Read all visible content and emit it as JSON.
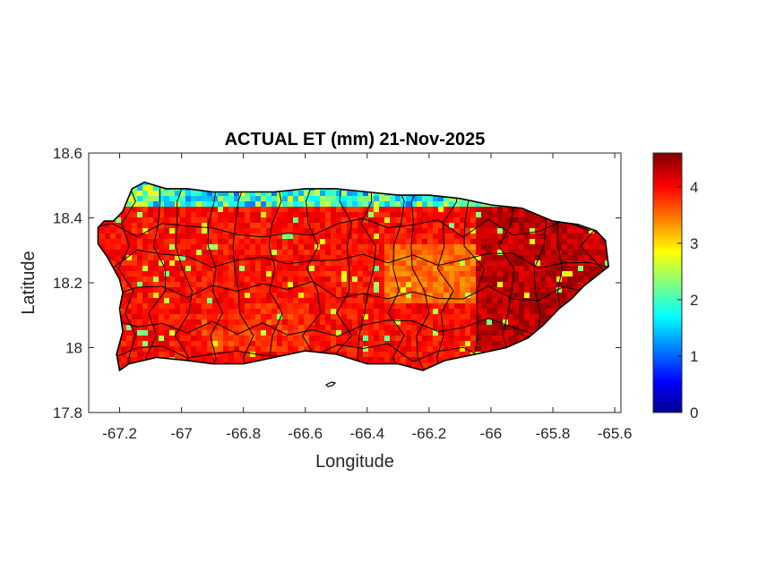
{
  "figure": {
    "title": "ACTUAL ET (mm) 21-Nov-2025",
    "xlabel": "Longitude",
    "ylabel": "Latitude"
  },
  "chart_data": {
    "type": "heatmap",
    "title": "ACTUAL ET (mm) 21-Nov-2025",
    "xlabel": "Longitude",
    "ylabel": "Latitude",
    "xlim": [
      -67.3,
      -65.58
    ],
    "ylim": [
      17.8,
      18.6
    ],
    "xticks": [
      -67.2,
      -67,
      -66.8,
      -66.6,
      -66.4,
      -66.2,
      -66,
      -65.8,
      -65.6
    ],
    "xtick_labels": [
      "-67.2",
      "-67",
      "-66.8",
      "-66.6",
      "-66.4",
      "-66.2",
      "-66",
      "-65.8",
      "-65.6"
    ],
    "yticks": [
      17.8,
      18,
      18.2,
      18.4,
      18.6
    ],
    "ytick_labels": [
      "17.8",
      "18",
      "18.2",
      "18.4",
      "18.6"
    ],
    "colorbar": {
      "colormap": "jet",
      "clim": [
        0,
        4.6
      ],
      "ticks": [
        0,
        1,
        2,
        3,
        4
      ],
      "tick_labels": [
        "0",
        "1",
        "2",
        "3",
        "4"
      ]
    },
    "grid": false,
    "field_description_summary": {
      "typical_range": [
        3.2,
        4.6
      ],
      "high_region": "eastern interior and southeast (~4.3-4.6)",
      "low_region": "north coast fringe (~0.5-2)",
      "moderate_region": "central-north interior (~3.0-3.5)"
    },
    "island_outline": [
      [
        -67.27,
        18.37
      ],
      [
        -67.25,
        18.39
      ],
      [
        -67.22,
        18.39
      ],
      [
        -67.19,
        18.42
      ],
      [
        -67.16,
        18.49
      ],
      [
        -67.12,
        18.51
      ],
      [
        -67.05,
        18.49
      ],
      [
        -66.98,
        18.49
      ],
      [
        -66.9,
        18.48
      ],
      [
        -66.8,
        18.48
      ],
      [
        -66.7,
        18.48
      ],
      [
        -66.6,
        18.49
      ],
      [
        -66.5,
        18.49
      ],
      [
        -66.4,
        18.48
      ],
      [
        -66.3,
        18.47
      ],
      [
        -66.2,
        18.47
      ],
      [
        -66.1,
        18.46
      ],
      [
        -66.0,
        18.44
      ],
      [
        -65.9,
        18.43
      ],
      [
        -65.8,
        18.39
      ],
      [
        -65.72,
        18.38
      ],
      [
        -65.66,
        18.36
      ],
      [
        -65.63,
        18.33
      ],
      [
        -65.62,
        18.25
      ],
      [
        -65.66,
        18.22
      ],
      [
        -65.7,
        18.19
      ],
      [
        -65.74,
        18.15
      ],
      [
        -65.78,
        18.12
      ],
      [
        -65.83,
        18.07
      ],
      [
        -65.88,
        18.03
      ],
      [
        -65.95,
        18.0
      ],
      [
        -66.05,
        17.98
      ],
      [
        -66.15,
        17.96
      ],
      [
        -66.22,
        17.93
      ],
      [
        -66.3,
        17.95
      ],
      [
        -66.4,
        17.95
      ],
      [
        -66.5,
        17.98
      ],
      [
        -66.6,
        17.99
      ],
      [
        -66.7,
        17.97
      ],
      [
        -66.8,
        17.95
      ],
      [
        -66.9,
        17.95
      ],
      [
        -66.98,
        17.96
      ],
      [
        -67.08,
        17.97
      ],
      [
        -67.17,
        17.95
      ],
      [
        -67.2,
        17.93
      ],
      [
        -67.21,
        17.98
      ],
      [
        -67.19,
        18.05
      ],
      [
        -67.2,
        18.12
      ],
      [
        -67.19,
        18.17
      ],
      [
        -67.2,
        18.21
      ],
      [
        -67.24,
        18.28
      ],
      [
        -67.27,
        18.32
      ]
    ]
  },
  "colors": {
    "jet_stops": [
      "#00008f",
      "#0000ff",
      "#00ffff",
      "#ffff00",
      "#ff0000",
      "#800000"
    ],
    "border": "#000000",
    "text": "#262626"
  }
}
